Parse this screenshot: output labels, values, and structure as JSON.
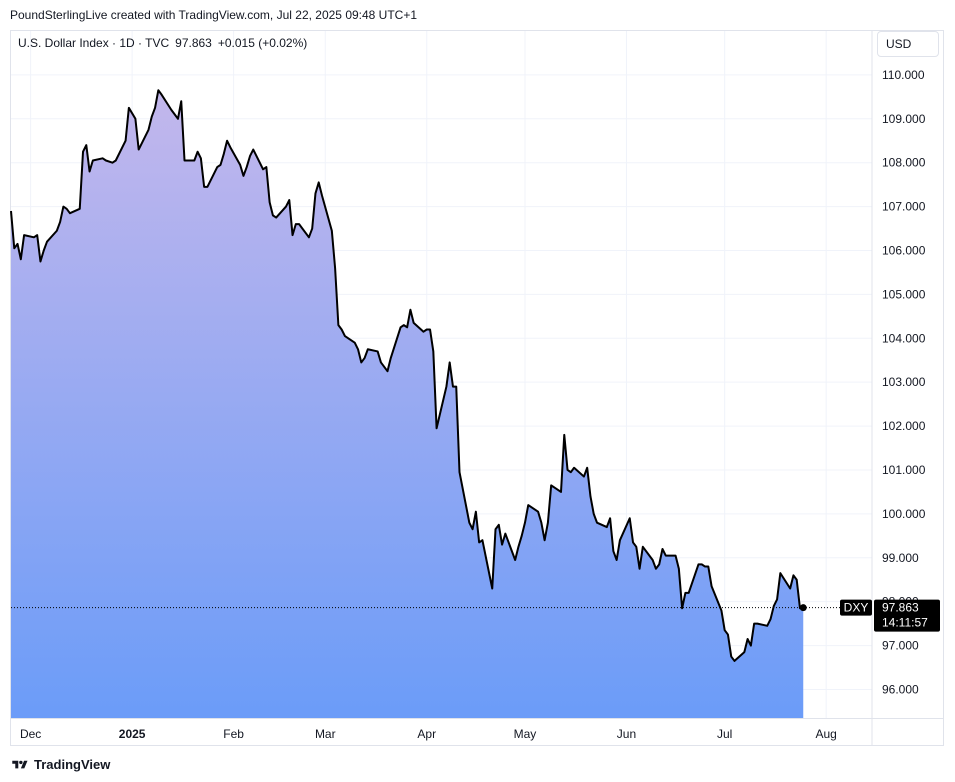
{
  "attribution": "PoundSterlingLive created with TradingView.com, Jul 22, 2025 09:48 UTC+1",
  "legend": {
    "symbol": "U.S. Dollar Index · 1D · TVC",
    "last": "97.863",
    "change": "+0.015 (+0.02%)"
  },
  "currency_button": "USD",
  "price_tag": {
    "ticker": "DXY",
    "price": "97.863",
    "countdown": "14:11:57"
  },
  "footer": {
    "brand": "TradingView"
  },
  "colors": {
    "line": "#000000",
    "fill_top": "#c3b7ec",
    "fill_bottom": "#6b9cf8",
    "grid": "#f0f3fa",
    "tag_bg": "#000000"
  },
  "chart_data": {
    "type": "area",
    "title": "",
    "xlabel": "",
    "ylabel": "",
    "ylim": [
      95.35,
      111.0
    ],
    "y_ticks": [
      "96.000",
      "97.000",
      "98.000",
      "99.000",
      "100.000",
      "101.000",
      "102.000",
      "103.000",
      "104.000",
      "105.000",
      "106.000",
      "107.000",
      "108.000",
      "109.000",
      "110.000"
    ],
    "x_ticks": [
      {
        "label": "Dec",
        "date": "2024-12-01"
      },
      {
        "label": "2025",
        "date": "2025-01-01",
        "bold": true
      },
      {
        "label": "Feb",
        "date": "2025-02-01"
      },
      {
        "label": "Mar",
        "date": "2025-03-01"
      },
      {
        "label": "Apr",
        "date": "2025-04-01"
      },
      {
        "label": "May",
        "date": "2025-05-01"
      },
      {
        "label": "Jun",
        "date": "2025-06-01"
      },
      {
        "label": "Jul",
        "date": "2025-07-01"
      },
      {
        "label": "Aug",
        "date": "2025-08-01"
      }
    ],
    "xlim": [
      "2024-11-25",
      "2025-08-15"
    ],
    "grid": true,
    "series": [
      {
        "values": [
          [
            "2024-11-25",
            106.9
          ],
          [
            "2024-11-26",
            106.05
          ],
          [
            "2024-11-27",
            106.15
          ],
          [
            "2024-11-28",
            105.8
          ],
          [
            "2024-11-29",
            106.35
          ],
          [
            "2024-12-02",
            106.3
          ],
          [
            "2024-12-03",
            106.35
          ],
          [
            "2024-12-04",
            105.75
          ],
          [
            "2024-12-05",
            106.0
          ],
          [
            "2024-12-06",
            106.2
          ],
          [
            "2024-12-09",
            106.45
          ],
          [
            "2024-12-10",
            106.65
          ],
          [
            "2024-12-11",
            107.0
          ],
          [
            "2024-12-12",
            106.95
          ],
          [
            "2024-12-13",
            106.85
          ],
          [
            "2024-12-16",
            106.95
          ],
          [
            "2024-12-17",
            108.25
          ],
          [
            "2024-12-18",
            108.4
          ],
          [
            "2024-12-19",
            107.8
          ],
          [
            "2024-12-20",
            108.05
          ],
          [
            "2024-12-23",
            108.1
          ],
          [
            "2024-12-24",
            108.05
          ],
          [
            "2024-12-26",
            108.0
          ],
          [
            "2024-12-27",
            108.05
          ],
          [
            "2024-12-30",
            108.5
          ],
          [
            "2024-12-31",
            109.25
          ],
          [
            "2025-01-02",
            109.0
          ],
          [
            "2025-01-03",
            108.3
          ],
          [
            "2025-01-06",
            108.75
          ],
          [
            "2025-01-07",
            109.05
          ],
          [
            "2025-01-08",
            109.25
          ],
          [
            "2025-01-09",
            109.65
          ],
          [
            "2025-01-10",
            109.55
          ],
          [
            "2025-01-13",
            109.2
          ],
          [
            "2025-01-14",
            109.1
          ],
          [
            "2025-01-15",
            109.0
          ],
          [
            "2025-01-16",
            109.4
          ],
          [
            "2025-01-17",
            108.05
          ],
          [
            "2025-01-20",
            108.05
          ],
          [
            "2025-01-21",
            108.25
          ],
          [
            "2025-01-22",
            108.1
          ],
          [
            "2025-01-23",
            107.45
          ],
          [
            "2025-01-24",
            107.45
          ],
          [
            "2025-01-27",
            107.9
          ],
          [
            "2025-01-28",
            107.95
          ],
          [
            "2025-01-29",
            108.2
          ],
          [
            "2025-01-30",
            108.5
          ],
          [
            "2025-01-31",
            108.35
          ],
          [
            "2025-02-03",
            107.95
          ],
          [
            "2025-02-04",
            107.7
          ],
          [
            "2025-02-05",
            107.9
          ],
          [
            "2025-02-06",
            108.15
          ],
          [
            "2025-02-07",
            108.3
          ],
          [
            "2025-02-10",
            107.85
          ],
          [
            "2025-02-11",
            107.9
          ],
          [
            "2025-02-12",
            107.1
          ],
          [
            "2025-02-13",
            106.8
          ],
          [
            "2025-02-14",
            106.75
          ],
          [
            "2025-02-17",
            107.0
          ],
          [
            "2025-02-18",
            107.15
          ],
          [
            "2025-02-19",
            106.35
          ],
          [
            "2025-02-20",
            106.6
          ],
          [
            "2025-02-21",
            106.6
          ],
          [
            "2025-02-24",
            106.3
          ],
          [
            "2025-02-25",
            106.5
          ],
          [
            "2025-02-26",
            107.3
          ],
          [
            "2025-02-27",
            107.55
          ],
          [
            "2025-02-28",
            107.25
          ],
          [
            "2025-03-03",
            106.45
          ],
          [
            "2025-03-04",
            105.6
          ],
          [
            "2025-03-05",
            104.3
          ],
          [
            "2025-03-06",
            104.2
          ],
          [
            "2025-03-07",
            104.05
          ],
          [
            "2025-03-10",
            103.9
          ],
          [
            "2025-03-11",
            103.75
          ],
          [
            "2025-03-12",
            103.45
          ],
          [
            "2025-03-13",
            103.55
          ],
          [
            "2025-03-14",
            103.75
          ],
          [
            "2025-03-17",
            103.7
          ],
          [
            "2025-03-18",
            103.45
          ],
          [
            "2025-03-19",
            103.35
          ],
          [
            "2025-03-20",
            103.25
          ],
          [
            "2025-03-21",
            103.55
          ],
          [
            "2025-03-24",
            104.25
          ],
          [
            "2025-03-25",
            104.3
          ],
          [
            "2025-03-26",
            104.25
          ],
          [
            "2025-03-27",
            104.65
          ],
          [
            "2025-03-28",
            104.35
          ],
          [
            "2025-03-31",
            104.15
          ],
          [
            "2025-04-01",
            104.2
          ],
          [
            "2025-04-02",
            104.2
          ],
          [
            "2025-04-03",
            103.7
          ],
          [
            "2025-04-04",
            101.95
          ],
          [
            "2025-04-07",
            102.9
          ],
          [
            "2025-04-08",
            103.45
          ],
          [
            "2025-04-09",
            102.9
          ],
          [
            "2025-04-10",
            102.9
          ],
          [
            "2025-04-11",
            100.95
          ],
          [
            "2025-04-14",
            99.8
          ],
          [
            "2025-04-15",
            99.65
          ],
          [
            "2025-04-16",
            100.05
          ],
          [
            "2025-04-17",
            99.35
          ],
          [
            "2025-04-18",
            99.4
          ],
          [
            "2025-04-21",
            98.3
          ],
          [
            "2025-04-22",
            99.65
          ],
          [
            "2025-04-23",
            99.75
          ],
          [
            "2025-04-24",
            99.3
          ],
          [
            "2025-04-25",
            99.55
          ],
          [
            "2025-04-28",
            98.95
          ],
          [
            "2025-04-29",
            99.25
          ],
          [
            "2025-04-30",
            99.5
          ],
          [
            "2025-05-01",
            99.8
          ],
          [
            "2025-05-02",
            100.2
          ],
          [
            "2025-05-05",
            100.05
          ],
          [
            "2025-05-06",
            99.8
          ],
          [
            "2025-05-07",
            99.4
          ],
          [
            "2025-05-08",
            99.8
          ],
          [
            "2025-05-09",
            100.65
          ],
          [
            "2025-05-12",
            100.5
          ],
          [
            "2025-05-13",
            101.8
          ],
          [
            "2025-05-14",
            101.0
          ],
          [
            "2025-05-15",
            100.95
          ],
          [
            "2025-05-16",
            101.05
          ],
          [
            "2025-05-19",
            100.85
          ],
          [
            "2025-05-20",
            101.05
          ],
          [
            "2025-05-21",
            100.4
          ],
          [
            "2025-05-22",
            100.0
          ],
          [
            "2025-05-23",
            99.8
          ],
          [
            "2025-05-26",
            99.7
          ],
          [
            "2025-05-27",
            99.9
          ],
          [
            "2025-05-28",
            99.15
          ],
          [
            "2025-05-29",
            98.95
          ],
          [
            "2025-05-30",
            99.4
          ],
          [
            "2025-06-02",
            99.9
          ],
          [
            "2025-06-03",
            99.35
          ],
          [
            "2025-06-04",
            99.25
          ],
          [
            "2025-06-05",
            98.75
          ],
          [
            "2025-06-06",
            99.25
          ],
          [
            "2025-06-09",
            98.95
          ],
          [
            "2025-06-10",
            98.75
          ],
          [
            "2025-06-11",
            98.85
          ],
          [
            "2025-06-12",
            99.2
          ],
          [
            "2025-06-13",
            99.05
          ],
          [
            "2025-06-16",
            99.05
          ],
          [
            "2025-06-17",
            98.75
          ],
          [
            "2025-06-18",
            97.85
          ],
          [
            "2025-06-19",
            98.2
          ],
          [
            "2025-06-20",
            98.2
          ],
          [
            "2025-06-23",
            98.85
          ],
          [
            "2025-06-24",
            98.85
          ],
          [
            "2025-06-25",
            98.8
          ],
          [
            "2025-06-26",
            98.8
          ],
          [
            "2025-06-27",
            98.35
          ],
          [
            "2025-06-30",
            97.8
          ],
          [
            "2025-07-01",
            97.35
          ],
          [
            "2025-07-02",
            97.25
          ],
          [
            "2025-07-03",
            96.75
          ],
          [
            "2025-07-04",
            96.65
          ],
          [
            "2025-07-07",
            96.85
          ],
          [
            "2025-07-08",
            97.15
          ],
          [
            "2025-07-09",
            97.0
          ],
          [
            "2025-07-10",
            97.5
          ],
          [
            "2025-07-11",
            97.5
          ],
          [
            "2025-07-14",
            97.45
          ],
          [
            "2025-07-15",
            97.6
          ],
          [
            "2025-07-16",
            97.9
          ],
          [
            "2025-07-17",
            98.05
          ],
          [
            "2025-07-18",
            98.65
          ],
          [
            "2025-07-21",
            98.3
          ],
          [
            "2025-07-22",
            98.6
          ],
          [
            "2025-07-23",
            98.5
          ],
          [
            "2025-07-24",
            97.85
          ],
          [
            "2025-07-25",
            97.863
          ]
        ]
      }
    ]
  }
}
